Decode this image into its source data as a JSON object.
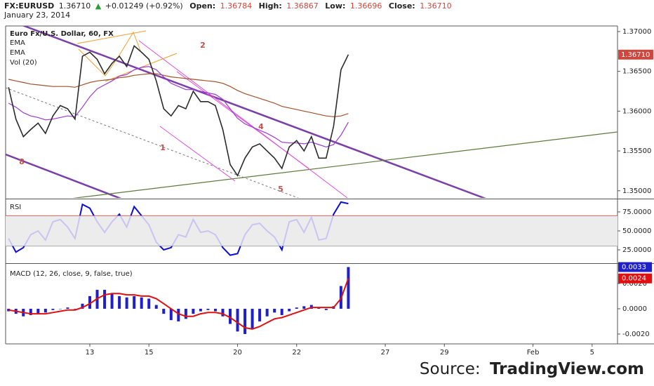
{
  "header": {
    "symbol": "FX:EURUSD",
    "last": "1.36710",
    "arrow": "▲",
    "change": "+0.01249 (+0.92%)",
    "open_label": "Open:",
    "open": "1.36784",
    "high_label": "High:",
    "high": "1.36867",
    "low_label": "Low:",
    "low": "1.36696",
    "close_label": "Close:",
    "close": "1.36710",
    "date": "January 23, 2014"
  },
  "chart_data": [
    {
      "type": "line",
      "title": "Euro Fx/U.S. Dollar, 60, FX",
      "volume_label": "Vol (20)",
      "x": [
        0.25,
        0.5,
        0.75,
        1,
        1.25,
        1.5,
        1.75,
        2,
        2.25,
        2.5,
        2.75,
        3,
        3.25,
        3.5,
        3.75,
        4,
        4.25,
        4.5,
        4.75,
        5,
        5.25,
        5.5,
        5.75,
        6,
        6.25,
        6.5,
        6.75,
        7,
        7.25,
        7.5,
        7.75,
        8,
        8.25,
        8.5,
        8.75,
        9,
        9.25,
        9.5,
        9.75,
        10,
        10.25,
        10.5,
        10.75,
        11,
        11.25,
        11.5,
        11.75
      ],
      "series": [
        {
          "color": "#2b2b2b",
          "values": [
            1.363,
            1.359,
            1.3568,
            1.3577,
            1.3585,
            1.3572,
            1.3594,
            1.3607,
            1.3603,
            1.359,
            1.3669,
            1.3674,
            1.3665,
            1.3647,
            1.366,
            1.3669,
            1.3656,
            1.3682,
            1.3674,
            1.3665,
            1.3638,
            1.3603,
            1.3594,
            1.3607,
            1.3603,
            1.3625,
            1.3612,
            1.3612,
            1.3607,
            1.3577,
            1.3533,
            1.3519,
            1.3541,
            1.3555,
            1.3559,
            1.355,
            1.3541,
            1.3528,
            1.3555,
            1.3563,
            1.355,
            1.3568,
            1.3541,
            1.3541,
            1.3581,
            1.3652,
            1.3671
          ]
        },
        {
          "name": "EMA",
          "color": "#9b3ad6",
          "values": [
            1.361,
            1.3605,
            1.3598,
            1.3594,
            1.3592,
            1.3589,
            1.359,
            1.3592,
            1.3594,
            1.3593,
            1.3605,
            1.3618,
            1.3628,
            1.3633,
            1.3638,
            1.3644,
            1.3646,
            1.3652,
            1.3655,
            1.3656,
            1.3652,
            1.3643,
            1.3635,
            1.3631,
            1.3627,
            1.3627,
            1.3625,
            1.3623,
            1.3621,
            1.3615,
            1.3603,
            1.3591,
            1.3584,
            1.358,
            1.3576,
            1.3572,
            1.3567,
            1.3561,
            1.356,
            1.356,
            1.3559,
            1.3561,
            1.3558,
            1.3555,
            1.3558,
            1.357,
            1.3586
          ]
        },
        {
          "name": "EMA",
          "color": "#a0522d",
          "values": [
            1.364,
            1.3638,
            1.3636,
            1.3634,
            1.3633,
            1.3632,
            1.3631,
            1.3631,
            1.3631,
            1.363,
            1.3633,
            1.3636,
            1.3638,
            1.3639,
            1.364,
            1.3642,
            1.3643,
            1.3645,
            1.3646,
            1.3647,
            1.3647,
            1.3645,
            1.3643,
            1.3642,
            1.3641,
            1.364,
            1.3639,
            1.3638,
            1.3637,
            1.3635,
            1.3631,
            1.3626,
            1.3622,
            1.3619,
            1.3616,
            1.3613,
            1.361,
            1.3606,
            1.3604,
            1.3602,
            1.36,
            1.3598,
            1.3596,
            1.3594,
            1.3593,
            1.3594,
            1.3597
          ]
        }
      ],
      "ylim": [
        1.3491,
        1.3707
      ],
      "yticks": [
        {
          "value": 1.35,
          "label": "1.35000"
        },
        {
          "value": 1.355,
          "label": "1.35500"
        },
        {
          "value": 1.36,
          "label": "1.36000"
        },
        {
          "value": 1.365,
          "label": "1.36500"
        },
        {
          "value": 1.37,
          "label": "1.37000"
        }
      ],
      "xlim": [
        0.15,
        20.86
      ],
      "xticks": [
        {
          "value": 3,
          "label": "13"
        },
        {
          "value": 5,
          "label": "15"
        },
        {
          "value": 8,
          "label": "20"
        },
        {
          "value": 10,
          "label": "22"
        },
        {
          "value": 13,
          "label": "27"
        },
        {
          "value": 15,
          "label": "29"
        },
        {
          "value": 18,
          "label": "Feb"
        },
        {
          "value": 20,
          "label": "5"
        }
      ],
      "annotations": [
        "1",
        "2",
        "4",
        "5",
        "8"
      ]
    },
    {
      "type": "rsi",
      "title": "RSI",
      "color": "#1010d0",
      "inner_color": "#c9c4f0",
      "bands": [
        30,
        70
      ],
      "series": [
        {
          "values": [
            40,
            22,
            28,
            45,
            50,
            38,
            62,
            65,
            55,
            40,
            85,
            80,
            62,
            48,
            62,
            72,
            55,
            82,
            70,
            58,
            35,
            25,
            28,
            45,
            42,
            65,
            48,
            50,
            45,
            28,
            18,
            20,
            45,
            58,
            60,
            50,
            42,
            25,
            62,
            65,
            48,
            68,
            38,
            40,
            72,
            88,
            86
          ]
        }
      ],
      "ylim": [
        10.2,
        90.7
      ],
      "yticks": [
        {
          "value": 25,
          "label": "25.0000"
        },
        {
          "value": 50,
          "label": "50.0000"
        },
        {
          "value": 75,
          "label": "75.0000"
        }
      ]
    },
    {
      "type": "macd",
      "title": "MACD (12, 26, close, 9, false, true)",
      "series": [
        {
          "color": "#2020c8",
          "values": [
            -0.0002,
            -0.0004,
            -0.0006,
            -0.0005,
            -0.0004,
            -0.0003,
            -0.0001,
            0.0,
            0.0001,
            0.0,
            0.0004,
            0.001,
            0.0015,
            0.0015,
            0.0012,
            0.001,
            0.0009,
            0.001,
            0.0009,
            0.0008,
            0.0003,
            -0.0004,
            -0.0009,
            -0.001,
            -0.0008,
            -0.0004,
            -0.0002,
            -0.0001,
            -0.0002,
            -0.0006,
            -0.0012,
            -0.0018,
            -0.002,
            -0.0016,
            -0.001,
            -0.0006,
            -0.0003,
            -0.0005,
            -0.0002,
            0.0001,
            0.0002,
            0.0003,
            0.0001,
            -0.0001,
            0.0002,
            0.0018,
            0.0033
          ]
        },
        {
          "color": "#e01010",
          "values": [
            -0.0001,
            -0.0002,
            -0.0003,
            -0.0004,
            -0.0004,
            -0.0004,
            -0.0003,
            -0.0002,
            -0.0001,
            -0.0001,
            0.0001,
            0.0004,
            0.0008,
            0.0011,
            0.0012,
            0.0012,
            0.0011,
            0.0011,
            0.001,
            0.001,
            0.0008,
            0.0004,
            0.0,
            -0.0004,
            -0.0006,
            -0.0006,
            -0.0004,
            -0.0003,
            -0.0003,
            -0.0004,
            -0.0007,
            -0.0011,
            -0.0015,
            -0.0016,
            -0.0014,
            -0.0011,
            -0.0008,
            -0.0007,
            -0.0005,
            -0.0003,
            -0.0001,
            0.0001,
            0.0001,
            0.0001,
            0.0001,
            0.0008,
            0.0024
          ]
        }
      ],
      "ylim": [
        -0.00278,
        0.00344
      ],
      "yticks": [
        {
          "value": 0.002,
          "label": "0.0020"
        },
        {
          "value": 0,
          "label": "0.0000"
        },
        {
          "value": -0.002,
          "label": "-0.0020"
        }
      ]
    }
  ],
  "source": {
    "prefix": "Source:",
    "site": "TradingView.com"
  }
}
